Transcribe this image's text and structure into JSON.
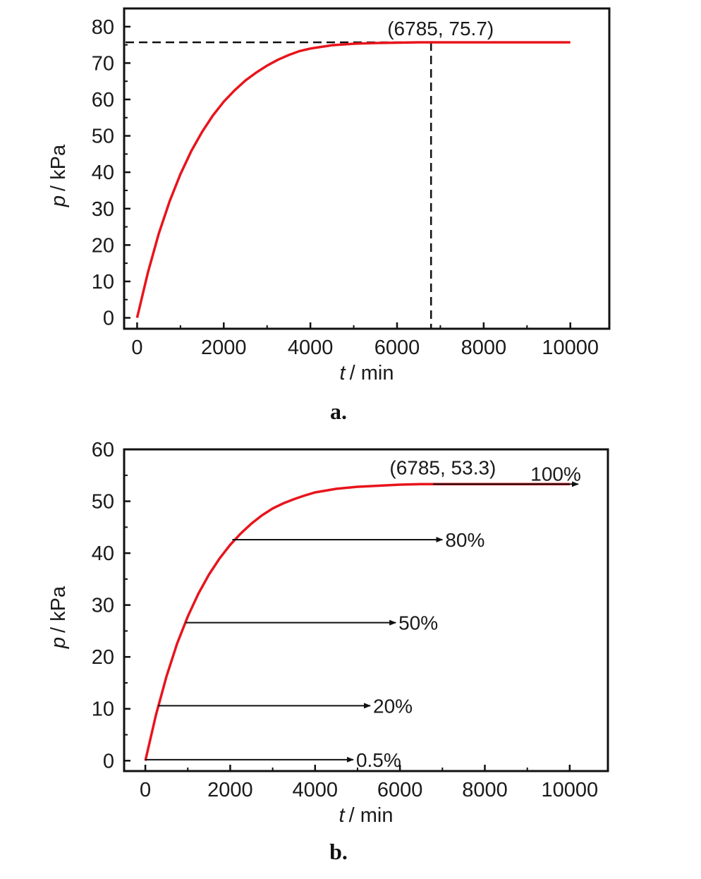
{
  "chart_data": [
    {
      "panel": "a.",
      "type": "line",
      "x_unit_label": "/ min",
      "x_symbol": "t",
      "y_unit_label": "/ kPa",
      "y_symbol": "p",
      "xlim": [
        -300,
        10900
      ],
      "ylim": [
        -3,
        85
      ],
      "x_ticks": [
        0,
        2000,
        4000,
        6000,
        8000,
        10000
      ],
      "y_ticks": [
        0,
        10,
        20,
        30,
        40,
        50,
        60,
        70,
        80
      ],
      "series": [
        {
          "color": "#e8141c",
          "x": [
            0,
            250,
            500,
            750,
            1000,
            1250,
            1500,
            1750,
            2000,
            2250,
            2500,
            2750,
            3000,
            3250,
            3500,
            3750,
            4000,
            4500,
            5000,
            5500,
            6000,
            6500,
            7000,
            8000,
            9000,
            10000
          ],
          "y": [
            0,
            12.5,
            23.1,
            32.0,
            39.5,
            45.8,
            51.1,
            55.6,
            59.4,
            62.5,
            65.2,
            67.4,
            69.3,
            70.9,
            72.2,
            73.3,
            74.0,
            74.9,
            75.3,
            75.5,
            75.6,
            75.7,
            75.7,
            75.7,
            75.7,
            75.7
          ]
        }
      ],
      "reference_point": {
        "x": 6785,
        "y": 75.7,
        "label": "(6785, 75.7)"
      }
    },
    {
      "panel": "b.",
      "type": "line",
      "x_unit_label": "/ min",
      "x_symbol": "t",
      "y_unit_label": "/ kPa",
      "y_symbol": "p",
      "xlim": [
        -500,
        10900
      ],
      "ylim": [
        -2,
        60
      ],
      "x_ticks": [
        0,
        2000,
        4000,
        6000,
        8000,
        10000
      ],
      "y_ticks": [
        0,
        10,
        20,
        30,
        40,
        50,
        60
      ],
      "series": [
        {
          "color": "#e8141c",
          "x": [
            0,
            250,
            500,
            750,
            1000,
            1250,
            1500,
            1750,
            2000,
            2250,
            2500,
            2750,
            3000,
            3250,
            3500,
            3750,
            4000,
            4500,
            5000,
            5500,
            6000,
            6500,
            7000,
            8000,
            9000,
            10000
          ],
          "y": [
            0,
            8.8,
            16.3,
            22.6,
            27.8,
            32.2,
            35.9,
            39.0,
            41.6,
            43.8,
            45.7,
            47.3,
            48.6,
            49.6,
            50.4,
            51.1,
            51.7,
            52.4,
            52.8,
            53.0,
            53.2,
            53.3,
            53.3,
            53.3,
            53.3,
            53.3
          ]
        }
      ],
      "reference_point": {
        "x": 6785,
        "y": 53.3,
        "label": "(6785, 53.3)"
      },
      "arrows": [
        {
          "label": "0.5%",
          "y": 0.2,
          "x_start": 0,
          "x_end": 4900
        },
        {
          "label": "20%",
          "y": 10.6,
          "x_start": 300,
          "x_end": 5300
        },
        {
          "label": "50%",
          "y": 26.6,
          "x_start": 950,
          "x_end": 5900
        },
        {
          "label": "80%",
          "y": 42.6,
          "x_start": 2050,
          "x_end": 7000
        },
        {
          "label": "100%",
          "y": 53.3,
          "x_start": 6785,
          "x_end": 10200
        }
      ]
    }
  ]
}
